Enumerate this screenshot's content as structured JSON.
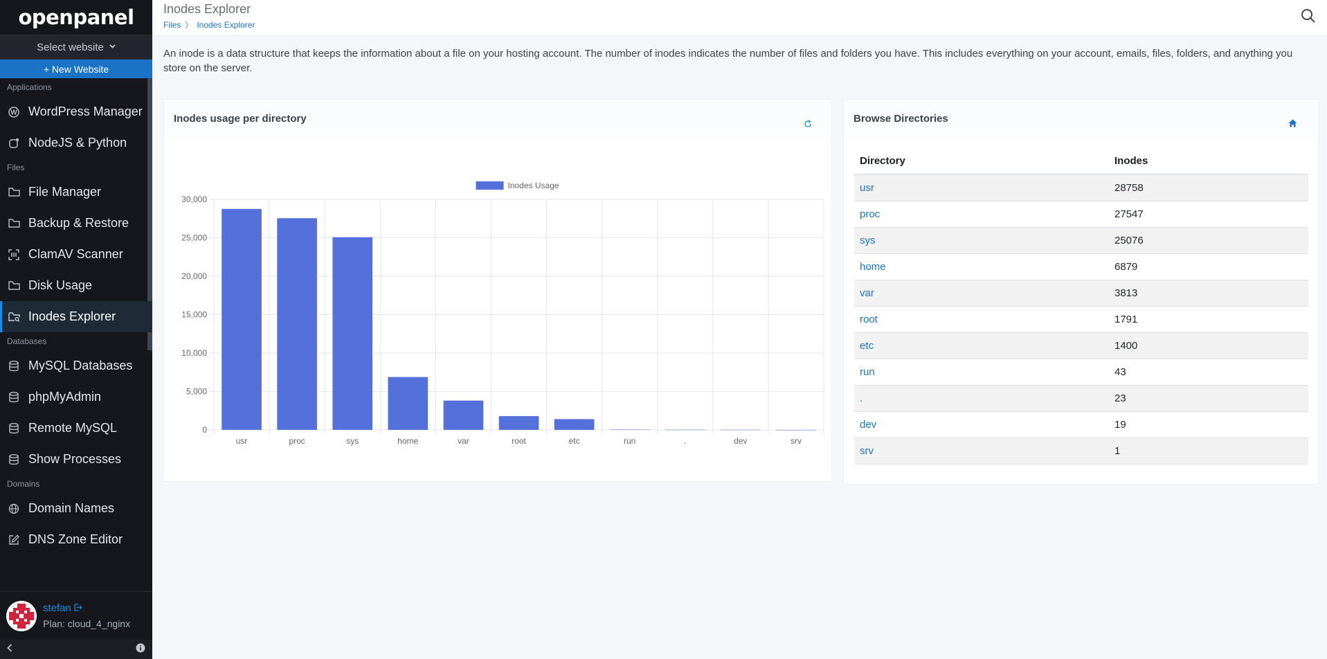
{
  "app": {
    "logo": "openpanel"
  },
  "sidebar": {
    "select_website": "Select website",
    "new_website": "+ New Website",
    "sections": [
      {
        "title": "Applications",
        "items": [
          {
            "label": "WordPress Manager",
            "icon": "wordpress-icon"
          },
          {
            "label": "NodeJS & Python",
            "icon": "nodejs-icon"
          }
        ]
      },
      {
        "title": "Files",
        "items": [
          {
            "label": "File Manager",
            "icon": "folder-icon"
          },
          {
            "label": "Backup & Restore",
            "icon": "folder-icon"
          },
          {
            "label": "ClamAV Scanner",
            "icon": "scan-icon"
          },
          {
            "label": "Disk Usage",
            "icon": "folder-icon"
          },
          {
            "label": "Inodes Explorer",
            "icon": "folder-search-icon",
            "active": true
          }
        ]
      },
      {
        "title": "Databases",
        "items": [
          {
            "label": "MySQL Databases",
            "icon": "database-icon"
          },
          {
            "label": "phpMyAdmin",
            "icon": "database-icon"
          },
          {
            "label": "Remote MySQL",
            "icon": "database-icon"
          },
          {
            "label": "Show Processes",
            "icon": "database-icon"
          }
        ]
      },
      {
        "title": "Domains",
        "items": [
          {
            "label": "Domain Names",
            "icon": "globe-icon"
          },
          {
            "label": "DNS Zone Editor",
            "icon": "edit-icon"
          }
        ]
      }
    ],
    "user": {
      "name": "stefan",
      "plan": "Plan: cloud_4_nginx"
    }
  },
  "header": {
    "title": "Inodes Explorer",
    "breadcrumb": [
      "Files",
      "Inodes Explorer"
    ],
    "description": "An inode is a data structure that keeps the information about a file on your hosting account. The number of inodes indicates the number of files and folders you have. This includes everything on your account, emails, files, folders, and anything you store on the server."
  },
  "chart_card": {
    "title": "Inodes usage per directory"
  },
  "dirs_card": {
    "title": "Browse Directories",
    "columns": [
      "Directory",
      "Inodes"
    ],
    "rows": [
      {
        "dir": "usr",
        "inodes": "28758"
      },
      {
        "dir": "proc",
        "inodes": "27547"
      },
      {
        "dir": "sys",
        "inodes": "25076"
      },
      {
        "dir": "home",
        "inodes": "6879"
      },
      {
        "dir": "var",
        "inodes": "3813"
      },
      {
        "dir": "root",
        "inodes": "1791"
      },
      {
        "dir": "etc",
        "inodes": "1400"
      },
      {
        "dir": "run",
        "inodes": "43"
      },
      {
        "dir": ".",
        "inodes": "23"
      },
      {
        "dir": "dev",
        "inodes": "19"
      },
      {
        "dir": "srv",
        "inodes": "1"
      }
    ]
  },
  "chart_data": {
    "type": "bar",
    "categories": [
      "usr",
      "proc",
      "sys",
      "home",
      "var",
      "root",
      "etc",
      "run",
      ".",
      "dev",
      "srv"
    ],
    "series": [
      {
        "name": "Inodes Usage",
        "values": [
          28758,
          27547,
          25076,
          6879,
          3813,
          1791,
          1400,
          43,
          23,
          19,
          1
        ]
      }
    ],
    "ylim": [
      0,
      30000
    ],
    "yticks": [
      "0",
      "5,000",
      "10,000",
      "15,000",
      "20,000",
      "25,000",
      "30,000"
    ],
    "bar_color": "#5470db",
    "grid": true,
    "legend": "top-center"
  }
}
